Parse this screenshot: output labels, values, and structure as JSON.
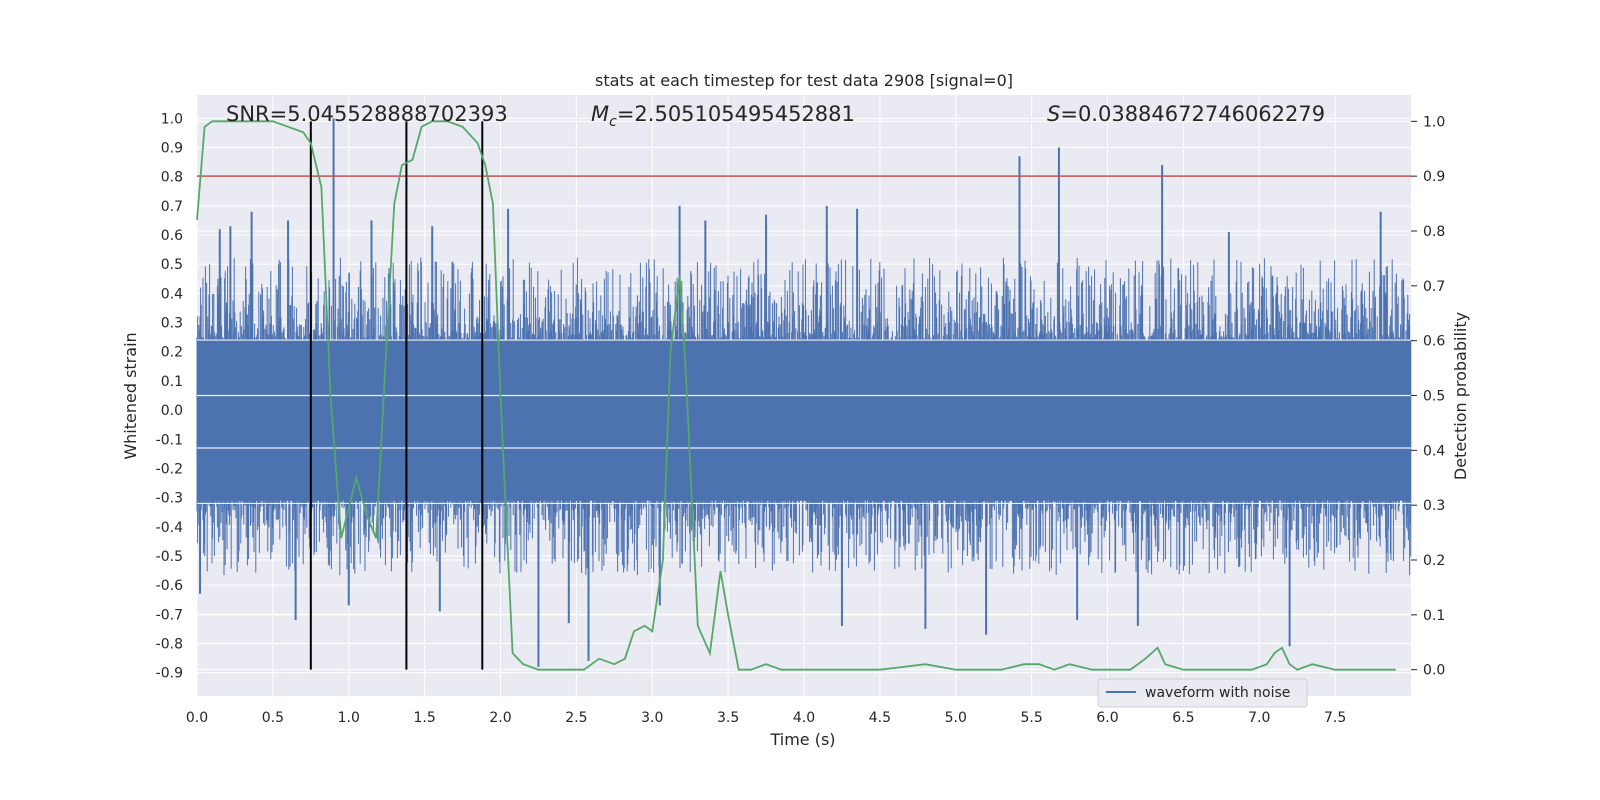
{
  "chart_data": {
    "type": "line",
    "title": "stats at each timestep for test data 2908 [signal=0]",
    "xlabel": "Time (s)",
    "ylabel": "Whitened strain",
    "y2label": "Detection probability",
    "xlim": [
      0.0,
      8.0
    ],
    "ylim": [
      -0.98,
      1.08
    ],
    "y2lim": [
      -0.048,
      1.048
    ],
    "x_ticks": [
      "0.0",
      "0.5",
      "1.0",
      "1.5",
      "2.0",
      "2.5",
      "3.0",
      "3.5",
      "4.0",
      "4.5",
      "5.0",
      "5.5",
      "6.0",
      "6.5",
      "7.0",
      "7.5"
    ],
    "y_ticks": [
      "1.0",
      "0.9",
      "0.8",
      "0.7",
      "0.6",
      "0.5",
      "0.4",
      "0.3",
      "0.2",
      "0.1",
      "0.0",
      "-0.1",
      "-0.2",
      "-0.3",
      "-0.4",
      "-0.5",
      "-0.6",
      "-0.7",
      "-0.8",
      "-0.9"
    ],
    "y2_ticks": [
      "1.0",
      "0.9",
      "0.8",
      "0.7",
      "0.6",
      "0.5",
      "0.4",
      "0.3",
      "0.2",
      "0.1",
      "0.0"
    ],
    "annotations": {
      "snr": "SNR=5.045528888702393",
      "mc_symbol": "M",
      "mc_subscript": "c",
      "mc_value": "=2.505105495452881",
      "s_symbol": "S",
      "s_value": "=0.03884672746062279"
    },
    "legend": {
      "label": "waveform with noise",
      "location": "lower-right"
    },
    "threshold": {
      "y2": 0.9,
      "color": "#c44e52"
    },
    "vlines": [
      0.75,
      1.38,
      1.88
    ],
    "series": [
      {
        "name": "waveform with noise",
        "color": "#4c72b0",
        "noise_envelope": {
          "core_top": 0.24,
          "core_bottom": -0.31,
          "typical_top": 0.45,
          "typical_bottom": -0.5
        },
        "spikes": [
          {
            "x": 0.15,
            "y": 0.62
          },
          {
            "x": 0.22,
            "y": 0.63
          },
          {
            "x": 0.36,
            "y": 0.68
          },
          {
            "x": 0.6,
            "y": 0.65
          },
          {
            "x": 0.9,
            "y": 1.0
          },
          {
            "x": 1.15,
            "y": 0.65
          },
          {
            "x": 1.55,
            "y": 0.63
          },
          {
            "x": 2.05,
            "y": 0.69
          },
          {
            "x": 3.18,
            "y": 0.7
          },
          {
            "x": 3.35,
            "y": 0.65
          },
          {
            "x": 3.75,
            "y": 0.67
          },
          {
            "x": 4.15,
            "y": 0.7
          },
          {
            "x": 4.35,
            "y": 0.69
          },
          {
            "x": 5.42,
            "y": 0.87
          },
          {
            "x": 5.68,
            "y": 0.9
          },
          {
            "x": 6.36,
            "y": 0.84
          },
          {
            "x": 6.8,
            "y": 0.61
          },
          {
            "x": 7.8,
            "y": 0.68
          },
          {
            "x": 0.02,
            "y": -0.63
          },
          {
            "x": 0.65,
            "y": -0.72
          },
          {
            "x": 1.0,
            "y": -0.67
          },
          {
            "x": 1.6,
            "y": -0.69
          },
          {
            "x": 2.25,
            "y": -0.88
          },
          {
            "x": 2.45,
            "y": -0.73
          },
          {
            "x": 2.58,
            "y": -0.86
          },
          {
            "x": 3.05,
            "y": -0.67
          },
          {
            "x": 4.25,
            "y": -0.74
          },
          {
            "x": 4.8,
            "y": -0.75
          },
          {
            "x": 5.2,
            "y": -0.77
          },
          {
            "x": 5.8,
            "y": -0.72
          },
          {
            "x": 6.2,
            "y": -0.74
          },
          {
            "x": 7.2,
            "y": -0.81
          }
        ]
      },
      {
        "name": "detection probability",
        "color": "#55a868",
        "axis": "right",
        "x": [
          0.0,
          0.05,
          0.1,
          0.2,
          0.3,
          0.4,
          0.5,
          0.6,
          0.7,
          0.75,
          0.82,
          0.88,
          0.95,
          1.05,
          1.12,
          1.18,
          1.25,
          1.3,
          1.35,
          1.42,
          1.48,
          1.55,
          1.65,
          1.75,
          1.85,
          1.9,
          1.95,
          2.0,
          2.08,
          2.15,
          2.25,
          2.35,
          2.45,
          2.55,
          2.65,
          2.75,
          2.82,
          2.88,
          2.95,
          3.0,
          3.07,
          3.12,
          3.18,
          3.22,
          3.3,
          3.38,
          3.45,
          3.5,
          3.57,
          3.65,
          3.75,
          3.85,
          4.0,
          4.2,
          4.5,
          4.8,
          5.0,
          5.3,
          5.45,
          5.55,
          5.65,
          5.75,
          5.9,
          6.0,
          6.15,
          6.25,
          6.33,
          6.38,
          6.5,
          6.7,
          6.95,
          7.05,
          7.1,
          7.15,
          7.2,
          7.25,
          7.35,
          7.5,
          7.7,
          7.9
        ],
        "y": [
          0.82,
          0.99,
          1.0,
          1.0,
          1.0,
          1.0,
          1.0,
          0.99,
          0.98,
          0.96,
          0.88,
          0.5,
          0.24,
          0.35,
          0.28,
          0.24,
          0.6,
          0.85,
          0.92,
          0.93,
          0.99,
          1.0,
          1.0,
          0.99,
          0.96,
          0.92,
          0.85,
          0.5,
          0.03,
          0.01,
          0.0,
          0.0,
          0.0,
          0.0,
          0.02,
          0.01,
          0.02,
          0.07,
          0.08,
          0.07,
          0.2,
          0.58,
          0.72,
          0.55,
          0.08,
          0.03,
          0.18,
          0.1,
          0.0,
          0.0,
          0.01,
          0.0,
          0.0,
          0.0,
          0.0,
          0.01,
          0.0,
          0.0,
          0.01,
          0.01,
          0.0,
          0.01,
          0.0,
          0.0,
          0.0,
          0.02,
          0.04,
          0.01,
          0.0,
          0.0,
          0.0,
          0.01,
          0.03,
          0.04,
          0.01,
          0.0,
          0.01,
          0.0,
          0.0,
          0.0
        ]
      }
    ]
  }
}
